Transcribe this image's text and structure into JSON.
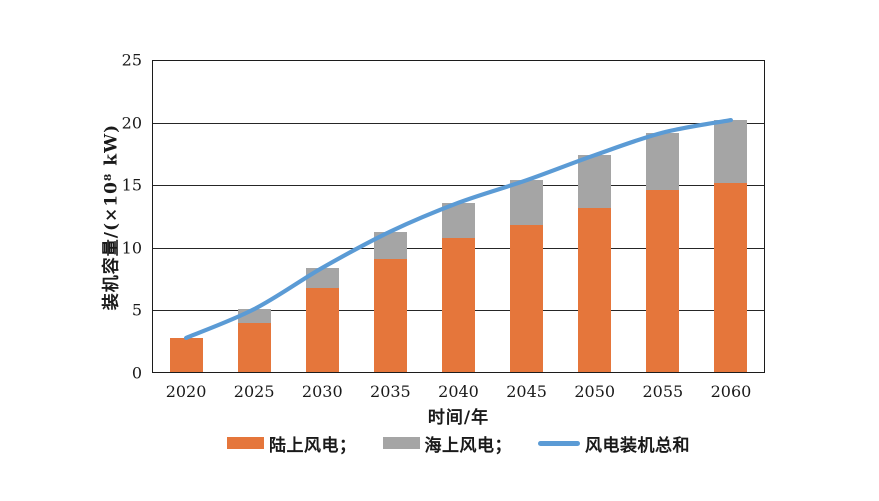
{
  "chart_data": {
    "type": "bar",
    "subtype": "stacked-bars-with-total-line",
    "title": "",
    "xlabel": "时间/年",
    "ylabel": "装机容量/(×10⁸ kW)",
    "categories": [
      "2020",
      "2025",
      "2030",
      "2035",
      "2040",
      "2045",
      "2050",
      "2055",
      "2060"
    ],
    "series": [
      {
        "name": "陆上风电",
        "legend_label": "陆上风电；",
        "kind": "bar",
        "color": "#E5763B",
        "values": [
          2.8,
          4.0,
          6.8,
          9.1,
          10.8,
          11.8,
          13.2,
          14.6,
          15.2
        ]
      },
      {
        "name": "海上风电",
        "legend_label": "海上风电；",
        "kind": "bar",
        "color": "#A5A5A5",
        "values": [
          0,
          1.1,
          1.6,
          2.2,
          2.8,
          3.6,
          4.2,
          4.6,
          5.0
        ]
      },
      {
        "name": "风电装机总和",
        "legend_label": "风电装机总和",
        "kind": "line",
        "color": "#5B9BD5",
        "values": [
          2.8,
          5.1,
          8.4,
          11.3,
          13.6,
          15.4,
          17.4,
          19.2,
          20.2
        ]
      }
    ],
    "ylim": [
      0,
      25
    ],
    "yticks": [
      0,
      5,
      10,
      15,
      20,
      25
    ],
    "grid": true,
    "grid_color": "#262626",
    "legend_position": "bottom"
  }
}
